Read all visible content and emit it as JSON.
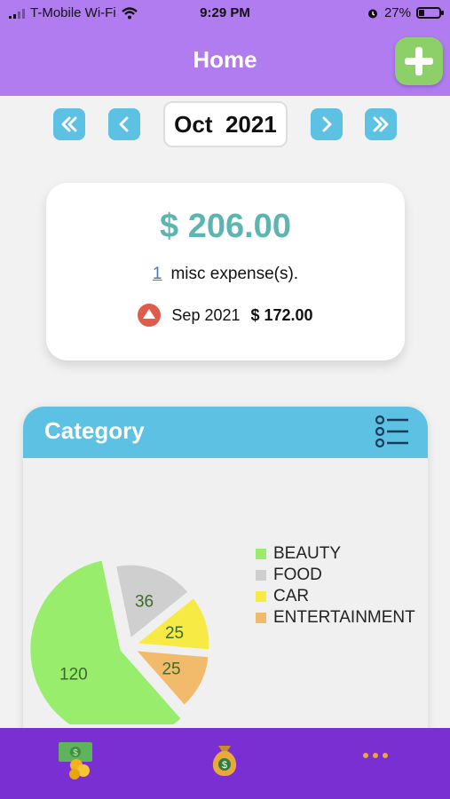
{
  "status_bar": {
    "carrier": "T-Mobile Wi-Fi",
    "time": "9:29 PM",
    "battery": "27%",
    "battery_level": 0.27
  },
  "header": {
    "title": "Home"
  },
  "month_nav": {
    "current": "Oct  2021"
  },
  "summary": {
    "total": "$ 206.00",
    "count": "1",
    "count_suffix": "misc expense(s).",
    "previous_month": "Sep 2021",
    "previous_total": "$ 172.00"
  },
  "category": {
    "title": "Category"
  },
  "chart_data": {
    "type": "pie",
    "labels": [
      "BEAUTY",
      "FOOD",
      "CAR",
      "ENTERTAINMENT"
    ],
    "values": [
      120,
      36,
      25,
      25
    ],
    "colors": [
      "#98ee6c",
      "#cfcfcf",
      "#f7ea45",
      "#f2bb6c"
    ]
  },
  "colors": {
    "header": "#b07cf0",
    "accent": "#5cc1e3",
    "amount": "#5bb6b1",
    "tabbar": "#7a2fd3",
    "alert": "#e05b4b"
  },
  "tabs": [
    {
      "icon": "money-coins-icon"
    },
    {
      "icon": "money-bag-icon"
    },
    {
      "icon": "more-dots-icon"
    }
  ]
}
